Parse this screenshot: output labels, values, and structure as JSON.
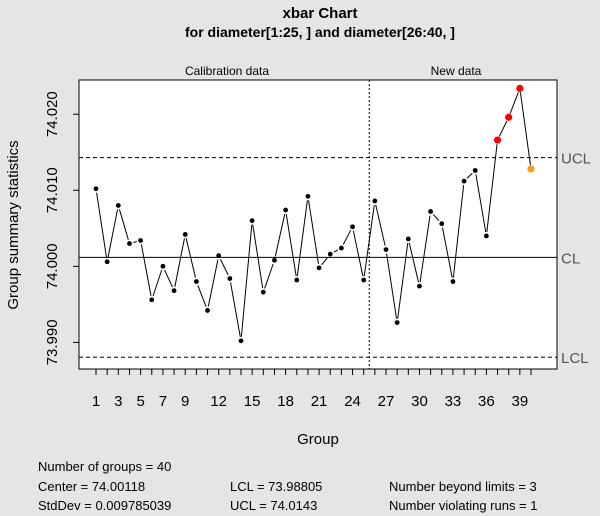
{
  "chart_data": {
    "type": "line",
    "title": "xbar Chart",
    "subtitle": "for diameter[1:25, ] and diameter[26:40, ]",
    "xlabel": "Group",
    "ylabel": "Group summary statistics",
    "phase_labels": [
      "Calibration data",
      "New data"
    ],
    "phase_split_after_group": 25,
    "xlim": [
      1,
      40
    ],
    "ylim": [
      73.9865,
      74.0245
    ],
    "x_ticks": [
      "1",
      "3",
      "5",
      "7",
      "9",
      "12",
      "15",
      "18",
      "21",
      "24",
      "27",
      "30",
      "33",
      "36",
      "39"
    ],
    "y_ticks": [
      "73.990",
      "74.000",
      "74.010",
      "74.020"
    ],
    "control_lines": [
      {
        "label": "UCL",
        "value": 74.0143,
        "style": "dashed"
      },
      {
        "label": "CL",
        "value": 74.00118,
        "style": "solid"
      },
      {
        "label": "LCL",
        "value": 73.98805,
        "style": "dashed"
      }
    ],
    "series": [
      {
        "x": [
          1,
          2,
          3,
          4,
          5,
          6,
          7,
          8,
          9,
          10,
          11,
          12,
          13,
          14,
          15,
          16,
          17,
          18,
          19,
          20,
          21,
          22,
          23,
          24,
          25,
          26,
          27,
          28,
          29,
          30,
          31,
          32,
          33,
          34,
          35,
          36,
          37,
          38,
          39,
          40
        ],
        "values": [
          74.0102,
          74.0006,
          74.008,
          74.003,
          74.0034,
          73.9956,
          74.0,
          73.9968,
          74.0042,
          73.998,
          73.9942,
          74.0014,
          73.9984,
          73.9902,
          74.006,
          73.9966,
          74.0008,
          74.0074,
          73.9982,
          74.0092,
          73.9998,
          74.0016,
          74.0024,
          74.0052,
          73.9982,
          74.0086,
          74.0022,
          73.9926,
          74.0036,
          73.9974,
          74.0072,
          74.0056,
          73.998,
          74.0112,
          74.0126,
          74.004,
          74.0166,
          74.0196,
          74.0234,
          74.0128
        ],
        "point_colors": {
          "default": "#000000",
          "beyond_limits": "#ff0000",
          "violating_runs": "#f0a020"
        },
        "beyond_limits_groups": [
          37,
          38,
          39
        ],
        "violating_runs_groups": [
          40
        ]
      }
    ]
  },
  "summary": {
    "groups": "Number of groups = 40",
    "center": "Center = 74.00118",
    "stddev": "StdDev = 0.009785039",
    "lcl": "LCL = 73.98805",
    "ucl": "UCL = 74.0143",
    "beyond": "Number beyond limits = 3",
    "runs": "Number violating runs = 1"
  }
}
